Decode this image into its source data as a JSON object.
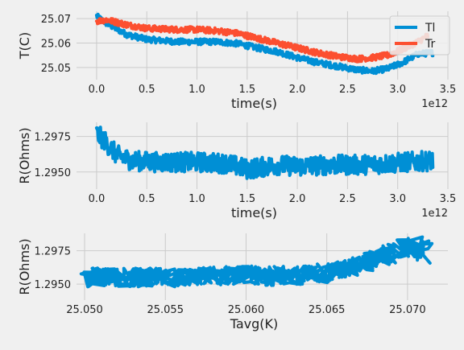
{
  "chart_data": [
    {
      "type": "line",
      "xlabel": "time(s)",
      "ylabel": "T(C)",
      "x_offset_label": "1e12",
      "xlim": [
        -0.2,
        3.5
      ],
      "ylim": [
        25.045,
        25.073
      ],
      "xticks": [
        0.0,
        0.5,
        1.0,
        1.5,
        2.0,
        2.5,
        3.0,
        3.5
      ],
      "xtick_labels": [
        "0.0",
        "0.5",
        "1.0",
        "1.5",
        "2.0",
        "2.5",
        "3.0",
        "3.5"
      ],
      "yticks": [
        25.05,
        25.06,
        25.07
      ],
      "ytick_labels": [
        "25.05",
        "25.06",
        "25.07"
      ],
      "grid": true,
      "legend": "top-right",
      "series": [
        {
          "name": "Tl",
          "color": "#008fd5",
          "noise": 0.0012,
          "x": [
            0.0,
            0.1,
            0.3,
            0.5,
            0.8,
            1.0,
            1.2,
            1.4,
            1.6,
            1.8,
            2.0,
            2.2,
            2.4,
            2.6,
            2.75,
            2.9,
            3.05,
            3.2,
            3.35
          ],
          "values": [
            25.071,
            25.068,
            25.0635,
            25.0615,
            25.0605,
            25.0605,
            25.0605,
            25.0598,
            25.058,
            25.0565,
            25.054,
            25.052,
            25.0505,
            25.049,
            25.0485,
            25.0495,
            25.052,
            25.0555,
            25.056
          ]
        },
        {
          "name": "Tr",
          "color": "#fc4f30",
          "noise": 0.0012,
          "x": [
            0.0,
            0.1,
            0.3,
            0.5,
            0.8,
            1.0,
            1.2,
            1.4,
            1.6,
            1.8,
            2.0,
            2.2,
            2.4,
            2.6,
            2.75,
            2.9,
            3.05,
            3.2,
            3.3
          ],
          "values": [
            25.069,
            25.0695,
            25.0675,
            25.066,
            25.0655,
            25.0655,
            25.065,
            25.064,
            25.062,
            25.06,
            25.058,
            25.056,
            25.0545,
            25.0535,
            25.054,
            25.055,
            25.0575,
            25.0605,
            25.063
          ]
        }
      ]
    },
    {
      "type": "line",
      "xlabel": "time(s)",
      "ylabel": "R(Ohms)",
      "x_offset_label": "1e12",
      "xlim": [
        -0.2,
        3.5
      ],
      "ylim": [
        1.2938,
        1.2985
      ],
      "xticks": [
        0.0,
        0.5,
        1.0,
        1.5,
        2.0,
        2.5,
        3.0,
        3.5
      ],
      "xtick_labels": [
        "0.0",
        "0.5",
        "1.0",
        "1.5",
        "2.0",
        "2.5",
        "3.0",
        "3.5"
      ],
      "yticks": [
        1.295,
        1.2975
      ],
      "ytick_labels": [
        "1.2950",
        "1.2975"
      ],
      "grid": true,
      "series": [
        {
          "color": "#008fd5",
          "noise": 0.0007,
          "x": [
            0.0,
            0.08,
            0.2,
            0.35,
            0.6,
            1.0,
            1.3,
            1.5,
            1.8,
            2.0,
            2.3,
            2.6,
            2.9,
            3.1,
            3.35
          ],
          "values": [
            1.2977,
            1.2972,
            1.2962,
            1.2958,
            1.2957,
            1.2957,
            1.2956,
            1.2952,
            1.2955,
            1.2954,
            1.2955,
            1.2955,
            1.2956,
            1.2957,
            1.2958
          ]
        }
      ]
    },
    {
      "type": "line",
      "xlabel": "Tavg(K)",
      "ylabel": "R(Ohms)",
      "xlim": [
        25.0495,
        25.0725
      ],
      "ylim": [
        1.2938,
        1.2988
      ],
      "xticks": [
        25.05,
        25.055,
        25.06,
        25.065,
        25.07
      ],
      "xtick_labels": [
        "25.050",
        "25.055",
        "25.060",
        "25.065",
        "25.070"
      ],
      "yticks": [
        1.295,
        1.2975
      ],
      "ytick_labels": [
        "1.2950",
        "1.2975"
      ],
      "grid": true,
      "series": [
        {
          "color": "#008fd5",
          "noise": 0.0007,
          "x": [
            25.0502,
            25.053,
            25.056,
            25.059,
            25.0615,
            25.064,
            25.0655,
            25.0675,
            25.069,
            25.0705,
            25.0712
          ],
          "values": [
            1.2955,
            1.2955,
            1.2955,
            1.2957,
            1.2956,
            1.2957,
            1.2959,
            1.2966,
            1.2973,
            1.2979,
            1.2972
          ]
        }
      ]
    }
  ]
}
